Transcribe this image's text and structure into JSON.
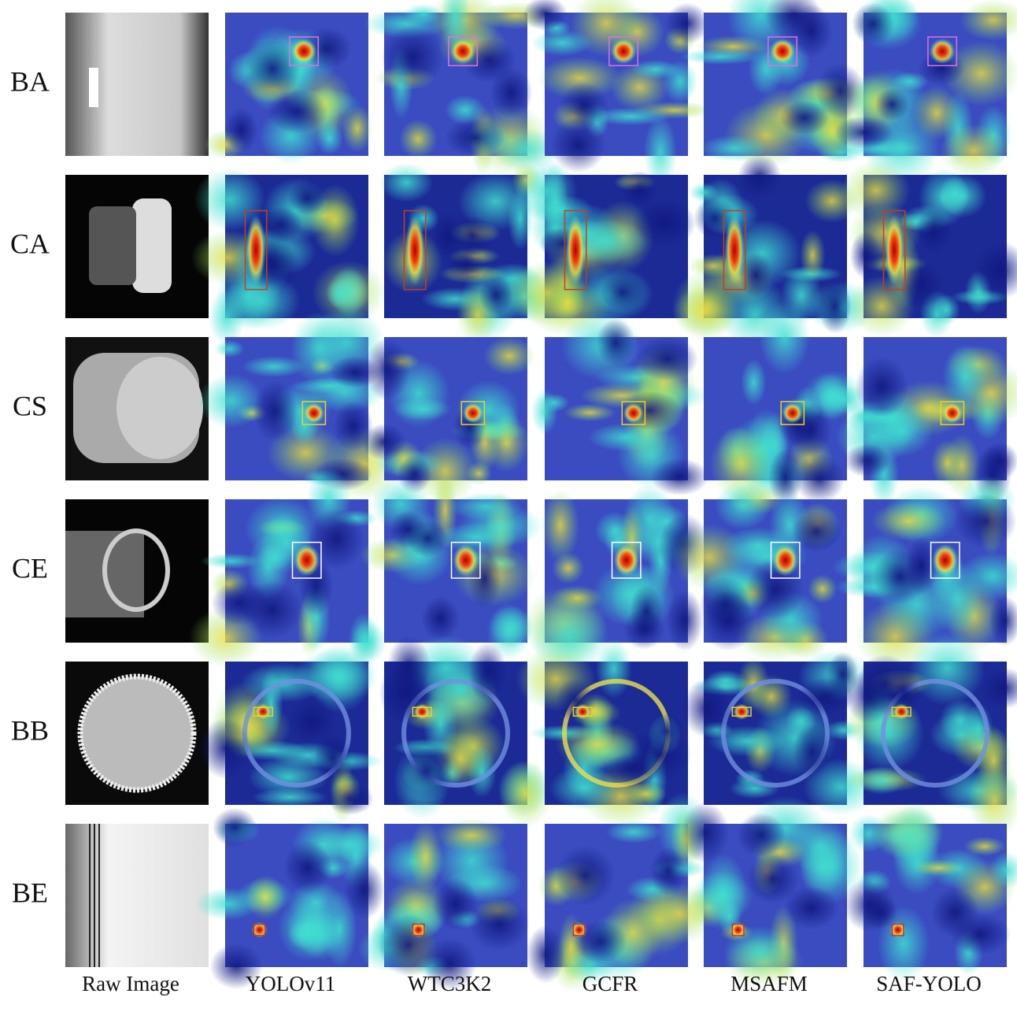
{
  "rows": [
    {
      "label": "BA"
    },
    {
      "label": "CA"
    },
    {
      "label": "CS"
    },
    {
      "label": "CE"
    },
    {
      "label": "BB"
    },
    {
      "label": "BE"
    }
  ],
  "columns": [
    {
      "label": "Raw Image"
    },
    {
      "label": "YOLOv11"
    },
    {
      "label": "WTC3K2"
    },
    {
      "label": "GCFR"
    },
    {
      "label": "MSAFM"
    },
    {
      "label": "SAF-YOLO"
    }
  ]
}
